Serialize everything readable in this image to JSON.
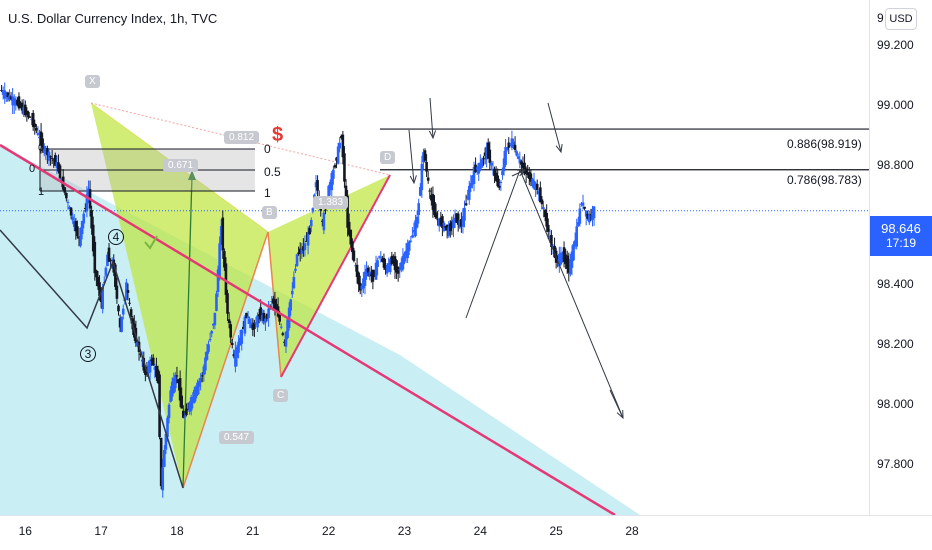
{
  "title": "U.S. Dollar Currency Index, 1h, TVC",
  "currency_badge": "USD",
  "top_price_partial": "9",
  "last_price": {
    "value": "98.646",
    "countdown": "17:19"
  },
  "fib_right_labels": [
    "0.886(98.919)",
    "0.786(98.783)"
  ],
  "fib_left_labels": [
    "0",
    "0.5",
    "1"
  ],
  "left_small_labels": [
    "0",
    "0",
    "1"
  ],
  "harmonic_points": [
    "X",
    "B",
    "C",
    "D"
  ],
  "ratios": [
    "0.812",
    "0.671",
    "1.383",
    "0.547"
  ],
  "waves": [
    "3",
    "4"
  ],
  "symbol": "$",
  "chart_data": {
    "type": "candlestick",
    "title": "U.S. Dollar Currency Index, 1h, TVC",
    "y_ticks": [
      "99.200",
      "99.000",
      "98.800",
      "98.600",
      "98.400",
      "98.200",
      "98.000",
      "97.800"
    ],
    "y_tick_values": [
      99.2,
      99.0,
      98.8,
      98.6,
      98.4,
      98.2,
      98.0,
      97.8
    ],
    "ylim": [
      97.63,
      99.35
    ],
    "x_ticks": [
      "16",
      "17",
      "18",
      "21",
      "22",
      "23",
      "24",
      "25",
      "28"
    ],
    "bars_per_day": 24,
    "x_range_bars": [
      -8,
      267
    ],
    "x_tick_bars": [
      0,
      24,
      48,
      72,
      96,
      120,
      144,
      168,
      192
    ],
    "grid": false,
    "levels": [
      {
        "label": "0.886(98.919)",
        "value": 98.919
      },
      {
        "label": "0.786(98.783)",
        "value": 98.783
      }
    ],
    "close_path": [
      [
        -8,
        99.05
      ],
      [
        -2,
        99.0
      ],
      [
        2,
        98.95
      ],
      [
        6,
        98.85
      ],
      [
        10,
        98.8
      ],
      [
        14,
        98.65
      ],
      [
        17,
        98.55
      ],
      [
        20,
        98.72
      ],
      [
        22,
        98.45
      ],
      [
        24,
        98.34
      ],
      [
        26,
        98.5
      ],
      [
        28,
        98.45
      ],
      [
        30,
        98.25
      ],
      [
        32,
        98.4
      ],
      [
        34,
        98.25
      ],
      [
        36,
        98.18
      ],
      [
        38,
        98.1
      ],
      [
        40,
        98.15
      ],
      [
        42,
        98.08
      ],
      [
        43,
        97.72
      ],
      [
        44,
        97.85
      ],
      [
        46,
        98.05
      ],
      [
        48,
        98.1
      ],
      [
        50,
        97.95
      ],
      [
        52,
        98.0
      ],
      [
        54,
        98.05
      ],
      [
        56,
        98.1
      ],
      [
        58,
        98.2
      ],
      [
        60,
        98.3
      ],
      [
        62,
        98.6
      ],
      [
        64,
        98.3
      ],
      [
        66,
        98.15
      ],
      [
        68,
        98.22
      ],
      [
        70,
        98.3
      ],
      [
        72,
        98.25
      ],
      [
        74,
        98.3
      ],
      [
        76,
        98.28
      ],
      [
        78,
        98.35
      ],
      [
        80,
        98.3
      ],
      [
        82,
        98.2
      ],
      [
        84,
        98.35
      ],
      [
        86,
        98.5
      ],
      [
        88,
        98.52
      ],
      [
        90,
        98.58
      ],
      [
        92,
        98.75
      ],
      [
        94,
        98.6
      ],
      [
        96,
        98.72
      ],
      [
        98,
        98.8
      ],
      [
        100,
        98.9
      ],
      [
        102,
        98.6
      ],
      [
        104,
        98.48
      ],
      [
        106,
        98.38
      ],
      [
        108,
        98.45
      ],
      [
        110,
        98.42
      ],
      [
        112,
        98.5
      ],
      [
        114,
        98.45
      ],
      [
        116,
        98.48
      ],
      [
        118,
        98.44
      ],
      [
        120,
        98.5
      ],
      [
        122,
        98.55
      ],
      [
        124,
        98.62
      ],
      [
        126,
        98.85
      ],
      [
        128,
        98.7
      ],
      [
        130,
        98.62
      ],
      [
        132,
        98.6
      ],
      [
        134,
        98.58
      ],
      [
        136,
        98.62
      ],
      [
        138,
        98.6
      ],
      [
        140,
        98.7
      ],
      [
        142,
        98.78
      ],
      [
        144,
        98.8
      ],
      [
        146,
        98.85
      ],
      [
        148,
        98.78
      ],
      [
        150,
        98.72
      ],
      [
        152,
        98.85
      ],
      [
        154,
        98.88
      ],
      [
        156,
        98.82
      ],
      [
        158,
        98.78
      ],
      [
        160,
        98.75
      ],
      [
        162,
        98.72
      ],
      [
        164,
        98.65
      ],
      [
        166,
        98.55
      ],
      [
        168,
        98.48
      ],
      [
        170,
        98.5
      ],
      [
        172,
        98.45
      ],
      [
        174,
        98.55
      ],
      [
        176,
        98.68
      ],
      [
        178,
        98.62
      ],
      [
        180,
        98.65
      ]
    ]
  }
}
